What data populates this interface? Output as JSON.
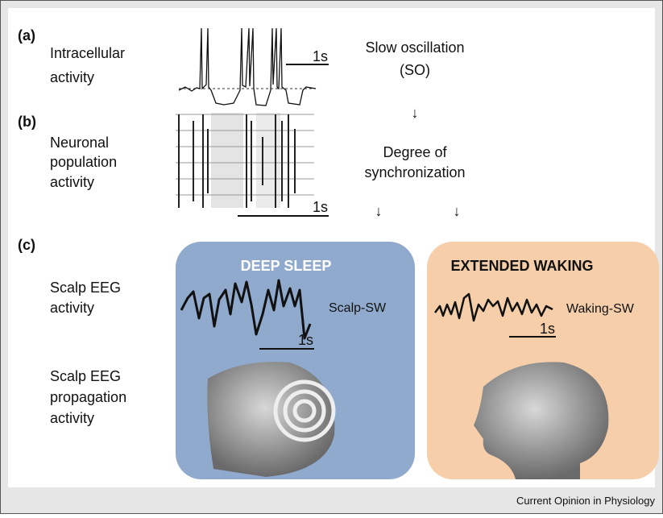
{
  "panel_a": {
    "label": "(a)",
    "lines": [
      "Intracellular",
      "activity"
    ],
    "scale": "1s",
    "title": [
      "Slow oscillation",
      "(SO)"
    ],
    "arrow": "↓"
  },
  "panel_b": {
    "label": "(b)",
    "lines": [
      "Neuronal",
      "population",
      "activity"
    ],
    "scale": "1s",
    "title": [
      "Degree of",
      "synchronization"
    ],
    "arrows": [
      "↓",
      "↓"
    ]
  },
  "panel_c": {
    "label": "(c)",
    "eeg_lines": [
      "Scalp EEG",
      "activity"
    ],
    "prop_lines": [
      "Scalp EEG",
      "propagation",
      "activity"
    ],
    "deep_sleep": {
      "title": "DEEP SLEEP",
      "wave": "Scalp-SW",
      "scale": "1s"
    },
    "waking": {
      "title": "EXTENDED WAKING",
      "wave": "Waking-SW",
      "scale": "1s"
    }
  },
  "footer": "Current Opinion in Physiology"
}
